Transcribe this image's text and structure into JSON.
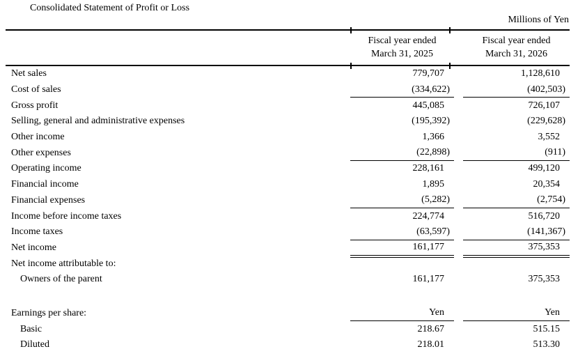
{
  "document": {
    "title": "Consolidated Statement of Profit or Loss",
    "units_note": "Millions of Yen"
  },
  "table": {
    "col_headers": [
      {
        "line1": "Fiscal year ended",
        "line2": "March 31, 2025"
      },
      {
        "line1": "Fiscal year ended",
        "line2": "March 31, 2026"
      }
    ],
    "rows": [
      {
        "label": "Net sales",
        "fy2025": "779,707",
        "fy2026": "1,128,610"
      },
      {
        "label": "Cost of sales",
        "fy2025": "(334,622)",
        "fy2026": "(402,503)"
      },
      {
        "label": "Gross profit",
        "fy2025": "445,085",
        "fy2026": "726,107"
      },
      {
        "label": "Selling, general and administrative expenses",
        "fy2025": "(195,392)",
        "fy2026": "(229,628)"
      },
      {
        "label": "Other income",
        "fy2025": "1,366",
        "fy2026": "3,552"
      },
      {
        "label": "Other expenses",
        "fy2025": "(22,898)",
        "fy2026": "(911)"
      },
      {
        "label": "Operating income",
        "fy2025": "228,161",
        "fy2026": "499,120"
      },
      {
        "label": "Financial income",
        "fy2025": "1,895",
        "fy2026": "20,354"
      },
      {
        "label": "Financial expenses",
        "fy2025": "(5,282)",
        "fy2026": "(2,754)"
      },
      {
        "label": "Income before income taxes",
        "fy2025": "224,774",
        "fy2026": "516,720"
      },
      {
        "label": "Income taxes",
        "fy2025": "(63,597)",
        "fy2026": "(141,367)"
      },
      {
        "label": "Net income",
        "fy2025": "161,177",
        "fy2026": "375,353"
      },
      {
        "label": "Net income attributable to:",
        "fy2025": "",
        "fy2026": ""
      },
      {
        "label": "Owners of the parent",
        "fy2025": "161,177",
        "fy2026": "375,353"
      },
      {
        "label": "Earnings per share:",
        "fy2025": "Yen",
        "fy2026": "Yen"
      },
      {
        "label": "Basic",
        "fy2025": "218.67",
        "fy2026": "515.15"
      },
      {
        "label": "Diluted",
        "fy2025": "218.01",
        "fy2026": "513.30"
      }
    ]
  }
}
